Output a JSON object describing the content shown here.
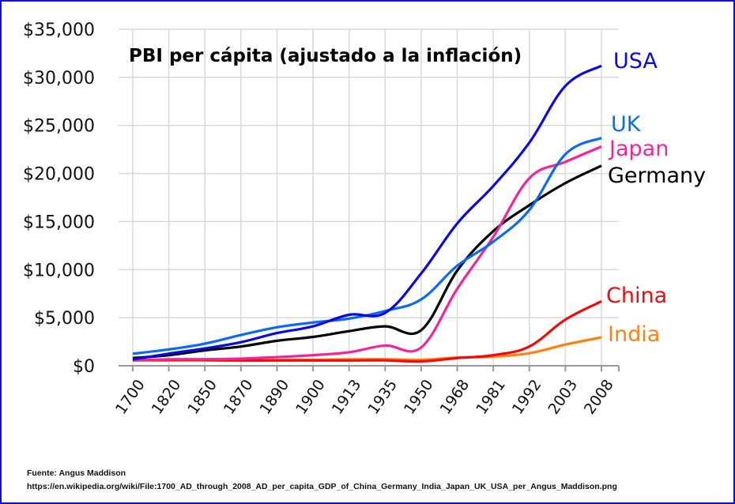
{
  "chart_data": {
    "type": "line",
    "title": "PBI per cápita (ajustado a la inflación)",
    "xlabel": "",
    "ylabel": "",
    "categories": [
      "1700",
      "1820",
      "1850",
      "1870",
      "1890",
      "1900",
      "1913",
      "1935",
      "1950",
      "1968",
      "1981",
      "1992",
      "2003",
      "2008"
    ],
    "ylim": [
      0,
      35000
    ],
    "yticks": [
      0,
      5000,
      10000,
      15000,
      20000,
      25000,
      30000,
      35000
    ],
    "ytick_labels": [
      "$0",
      "$5,000",
      "$10,000",
      "$15,000",
      "$20,000",
      "$25,000",
      "$30,000",
      "$35,000"
    ],
    "grid": true,
    "legend": "inline-right",
    "series": [
      {
        "name": "USA",
        "color": "#0a0ae0",
        "values": [
          650,
          1260,
          1800,
          2450,
          3400,
          4100,
          5300,
          5500,
          9600,
          14800,
          18700,
          23200,
          29100,
          31200
        ]
      },
      {
        "name": "UK",
        "color": "#0a6af0",
        "values": [
          1250,
          1700,
          2300,
          3200,
          4000,
          4500,
          4900,
          5700,
          6900,
          10400,
          12900,
          16200,
          22000,
          23700
        ]
      },
      {
        "name": "Japan",
        "color": "#f0259a",
        "values": [
          570,
          670,
          680,
          740,
          900,
          1100,
          1400,
          2100,
          1900,
          8000,
          13400,
          19500,
          21200,
          22800
        ]
      },
      {
        "name": "Germany",
        "color": "#000000",
        "values": [
          800,
          1100,
          1600,
          2000,
          2600,
          3000,
          3600,
          4100,
          3700,
          9900,
          14000,
          16700,
          19000,
          20800
        ]
      },
      {
        "name": "China",
        "color": "#f00a0a",
        "values": [
          600,
          600,
          600,
          550,
          550,
          550,
          550,
          560,
          450,
          800,
          1100,
          2000,
          4800,
          6700
        ]
      },
      {
        "name": "India",
        "color": "#ff8010",
        "values": [
          550,
          550,
          550,
          550,
          600,
          620,
          670,
          680,
          620,
          850,
          950,
          1300,
          2200,
          2950
        ]
      }
    ]
  },
  "source": {
    "line1": "Fuente: Angus Maddison",
    "line2": "https://en.wikipedia.org/wiki/File:1700_AD_through_2008_AD_per_capita_GDP_of_China_Germany_India_Japan_UK_USA_per_Angus_Maddison.png"
  }
}
